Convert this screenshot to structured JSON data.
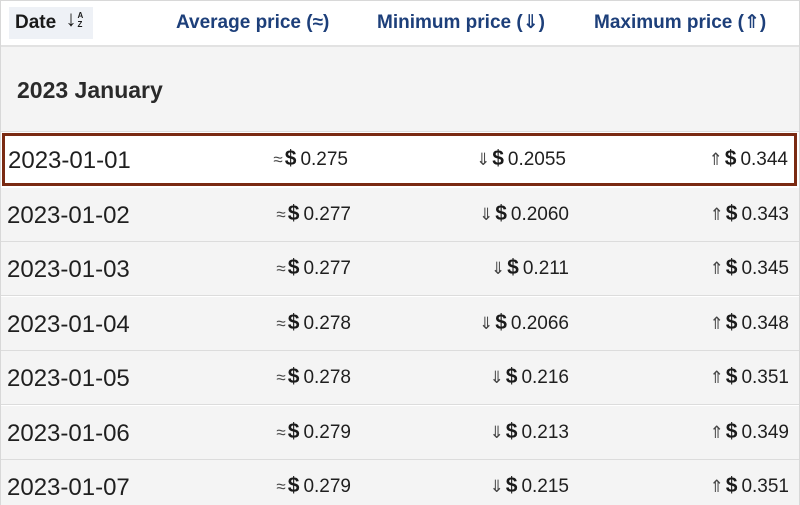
{
  "header": {
    "date_label": "Date",
    "sort_icon": "sort-ascending-az-icon",
    "sort_az": "AZ",
    "sort_a": "A",
    "sort_z": "Z",
    "avg_label": "Average price (≈)",
    "min_label": "Minimum price (⇓)",
    "max_label": "Maximum price (⇑)"
  },
  "month": {
    "label": "2023 January"
  },
  "symbols": {
    "avg": "≈",
    "min": "⇓",
    "max": "⇑",
    "currency": "$"
  },
  "colors": {
    "header_text": "#1d3f7a",
    "highlight_border": "#7a2a12",
    "row_background": "#f4f4f4"
  },
  "rows": [
    {
      "date": "2023-01-01",
      "avg": "0.275",
      "min": "0.2055",
      "max": "0.344",
      "highlighted": true
    },
    {
      "date": "2023-01-02",
      "avg": "0.277",
      "min": "0.2060",
      "max": "0.343"
    },
    {
      "date": "2023-01-03",
      "avg": "0.277",
      "min": "0.211",
      "max": "0.345"
    },
    {
      "date": "2023-01-04",
      "avg": "0.278",
      "min": "0.2066",
      "max": "0.348"
    },
    {
      "date": "2023-01-05",
      "avg": "0.278",
      "min": "0.216",
      "max": "0.351"
    },
    {
      "date": "2023-01-06",
      "avg": "0.279",
      "min": "0.213",
      "max": "0.349"
    },
    {
      "date": "2023-01-07",
      "avg": "0.279",
      "min": "0.215",
      "max": "0.351"
    }
  ]
}
